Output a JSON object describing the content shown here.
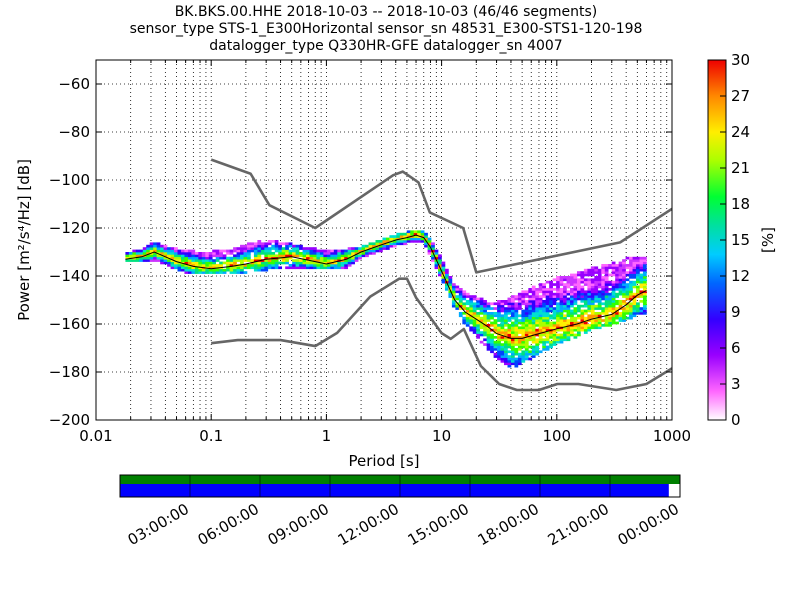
{
  "chart_data": {
    "type": "heatmap",
    "title_lines": [
      "BK.BKS.00.HHE   2018-10-03 -- 2018-10-03  (46/46 segments)",
      "sensor_type STS-1_E300Horizontal sensor_sn 48531_E300-STS1-120-198",
      "datalogger_type Q330HR-GFE datalogger_sn 4007"
    ],
    "xlabel": "Period [s]",
    "ylabel": "Power [m²/s⁴/Hz] [dB]",
    "xscale": "log",
    "xlim": [
      0.01,
      1000
    ],
    "ylim": [
      -200,
      -50
    ],
    "x_ticks": [
      0.01,
      0.1,
      1,
      10,
      100,
      1000
    ],
    "x_tick_labels": [
      "0.01",
      "0.1",
      "1",
      "10",
      "100",
      "1000"
    ],
    "y_ticks": [
      -200,
      -180,
      -160,
      -140,
      -120,
      -100,
      -80,
      -60
    ],
    "y_tick_labels": [
      "−200",
      "−180",
      "−160",
      "−140",
      "−120",
      "−100",
      "−80",
      "−60"
    ],
    "grid": true,
    "colorbar": {
      "label": "[%]",
      "range": [
        0,
        30
      ],
      "ticks": [
        0,
        3,
        6,
        9,
        12,
        15,
        18,
        21,
        24,
        27,
        30
      ],
      "tick_labels": [
        "0",
        "3",
        "6",
        "9",
        "12",
        "15",
        "18",
        "21",
        "24",
        "27",
        "30"
      ]
    },
    "noise_model_high": {
      "period": [
        0.1,
        0.22,
        0.32,
        0.8,
        3.8,
        4.6,
        6.3,
        7.9,
        15.4,
        20,
        354.8,
        1000
      ],
      "power": [
        -91.5,
        -97.4,
        -110.5,
        -120,
        -98,
        -96.5,
        -101,
        -113.5,
        -120,
        -138.5,
        -126,
        -112
      ]
    },
    "noise_model_low": {
      "period": [
        0.1,
        0.17,
        0.4,
        0.8,
        1.24,
        2.4,
        4.3,
        5,
        6,
        10,
        12,
        15.6,
        21.9,
        31.6,
        45,
        70,
        101,
        154,
        328,
        600,
        1000
      ],
      "power": [
        -168,
        -166.7,
        -166.7,
        -169.2,
        -163.7,
        -148.6,
        -141.1,
        -141.1,
        -149,
        -163.8,
        -166.2,
        -162.1,
        -177.5,
        -185,
        -187.5,
        -187.5,
        -185,
        -185,
        -187.5,
        -185,
        -178.5
      ]
    },
    "mode_curve": {
      "period": [
        0.018,
        0.025,
        0.032,
        0.04,
        0.05,
        0.07,
        0.1,
        0.15,
        0.2,
        0.3,
        0.5,
        0.8,
        1,
        1.5,
        2,
        3,
        4,
        5,
        6,
        7,
        8,
        10,
        13,
        16,
        20,
        25,
        30,
        40,
        50,
        70,
        100,
        150,
        200,
        300,
        400,
        500,
        600
      ],
      "power": [
        -133,
        -132,
        -130,
        -132,
        -134,
        -136,
        -137,
        -136,
        -135,
        -133,
        -132,
        -134,
        -135,
        -133,
        -130,
        -127,
        -125,
        -124,
        -123,
        -124,
        -128,
        -138,
        -150,
        -155,
        -158,
        -161,
        -164,
        -166,
        -166,
        -164,
        -162,
        -160,
        -158,
        -156,
        -152,
        -148,
        -146
      ]
    },
    "psd_band": {
      "period": [
        0.018,
        0.025,
        0.032,
        0.04,
        0.05,
        0.07,
        0.1,
        0.15,
        0.2,
        0.3,
        0.5,
        0.8,
        1,
        1.5,
        2,
        3,
        4,
        5,
        6,
        7,
        8,
        10,
        13,
        16,
        20,
        25,
        30,
        40,
        50,
        70,
        100,
        150,
        200,
        300,
        400,
        500,
        600
      ],
      "upper": [
        -132,
        -130,
        -127,
        -129,
        -130,
        -131,
        -131,
        -130,
        -128,
        -126,
        -128,
        -130,
        -130,
        -130,
        -129,
        -126,
        -124,
        -123,
        -122,
        -123,
        -126,
        -134,
        -145,
        -148,
        -150,
        -152,
        -152,
        -150,
        -148,
        -145,
        -142,
        -140,
        -138,
        -136,
        -134,
        -133,
        -133
      ],
      "lower": [
        -134,
        -134,
        -133,
        -135,
        -137,
        -139,
        -139,
        -139,
        -138,
        -137,
        -137,
        -137,
        -137,
        -136,
        -132,
        -129,
        -127,
        -126,
        -125,
        -126,
        -131,
        -141,
        -153,
        -160,
        -165,
        -170,
        -174,
        -178,
        -176,
        -172,
        -168,
        -165,
        -162,
        -160,
        -158,
        -156,
        -156
      ]
    },
    "data_coverage": {
      "time_labels": [
        "03:00:00",
        "06:00:00",
        "09:00:00",
        "12:00:00",
        "15:00:00",
        "18:00:00",
        "21:00:00",
        "00:00:00"
      ],
      "coverage_fraction": 0.98,
      "segments_used": 46,
      "segments_total": 46
    }
  }
}
